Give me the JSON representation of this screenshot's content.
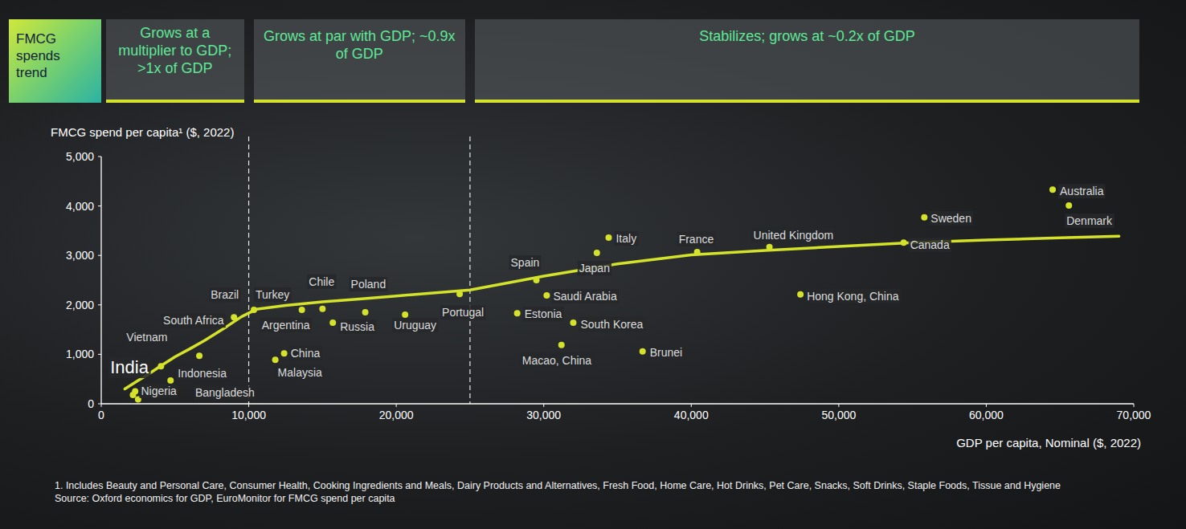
{
  "chart_data": {
    "type": "scatter",
    "title": "FMCG spends trend",
    "phases": [
      {
        "text": "Grows at a multiplier to GDP; >1x of GDP",
        "x_start": 0,
        "x_end": 10000
      },
      {
        "text": "Grows at par with GDP; ~0.9x of GDP",
        "x_start": 10000,
        "x_end": 25000
      },
      {
        "text": "Stabilizes; grows at ~0.2x of GDP",
        "x_start": 25000,
        "x_end": 70000
      }
    ],
    "y_label": "FMCG spend per capita¹ ($, 2022)",
    "x_label": "GDP per capita, Nominal ($, 2022)",
    "notes": [
      "1. Includes Beauty and Personal Care, Consumer Health, Cooking Ingredients and Meals, Dairy Products and Alternatives, Fresh Food, Home Care, Hot Drinks, Pet Care, Snacks, Soft Drinks, Staple Foods, Tissue and Hygiene",
      "Source: Oxford economics for GDP, EuroMonitor for FMCG spend per capita"
    ],
    "xlim": [
      0,
      70000
    ],
    "ylim": [
      0,
      5000
    ],
    "xticks": [
      0,
      {
        "value": 10000,
        "label": "10,000"
      },
      {
        "value": 20000,
        "label": "20,000"
      },
      {
        "value": 30000,
        "label": "30,000"
      },
      {
        "value": 40000,
        "label": "40,000"
      },
      {
        "value": 50000,
        "label": "50,000"
      },
      {
        "value": 60000,
        "label": "60,000"
      },
      {
        "value": 70000,
        "label": "70,000"
      }
    ],
    "yticks": [
      0,
      {
        "value": 1000,
        "label": "1,000"
      },
      {
        "value": 2000,
        "label": "2,000"
      },
      {
        "value": 3000,
        "label": "3,000"
      },
      {
        "value": 4000,
        "label": "4,000"
      },
      {
        "value": 5000,
        "label": "5,000"
      }
    ],
    "grid": false,
    "series": [
      {
        "type": "scatter",
        "color": "#d4e22c",
        "marker": "circle",
        "labels": [
          "India",
          "Nigeria",
          "Bangladesh",
          "Indonesia",
          "Vietnam",
          "South Africa",
          "Brazil",
          "Turkey",
          "Malaysia",
          "China",
          "Argentina",
          "Chile",
          "Russia",
          "Poland",
          "Uruguay",
          "Portugal",
          "Estonia",
          "Spain",
          "Saudi Arabia",
          "Macao, China",
          "South Korea",
          "Japan",
          "Italy",
          "Brunei",
          "France",
          "United Kingdom",
          "Hong Kong, China",
          "Canada",
          "Sweden",
          "Australia",
          "Denmark"
        ],
        "x": [
          2300,
          2150,
          2500,
          4700,
          4050,
          6650,
          9000,
          10350,
          11800,
          12400,
          13600,
          15000,
          15700,
          17900,
          20600,
          24300,
          28200,
          29500,
          30200,
          31200,
          32000,
          33600,
          34400,
          36700,
          40400,
          45300,
          47400,
          54400,
          55800,
          64500,
          65600
        ],
        "values": [
          250,
          180,
          90,
          470,
          760,
          970,
          1750,
          1900,
          890,
          1020,
          1900,
          1920,
          1640,
          1850,
          1800,
          2220,
          1830,
          2500,
          2190,
          1190,
          1640,
          3050,
          3360,
          1060,
          3070,
          3170,
          2210,
          3260,
          3770,
          4330,
          4010
        ]
      },
      {
        "type": "line",
        "color": "#d4e22c",
        "line_style": "solid",
        "x": [
          1600,
          2500,
          3000,
          4000,
          5000,
          6000,
          7000,
          8500,
          9500,
          10500,
          12500,
          15000,
          17500,
          20000,
          25000,
          30000,
          35000,
          40000,
          45000,
          50000,
          55000,
          60000,
          65000,
          69000
        ],
        "values": [
          300,
          470,
          560,
          760,
          950,
          1110,
          1280,
          1560,
          1760,
          1910,
          1990,
          2060,
          2120,
          2180,
          2300,
          2580,
          2830,
          3010,
          3100,
          3180,
          3260,
          3310,
          3355,
          3390
        ]
      }
    ]
  }
}
